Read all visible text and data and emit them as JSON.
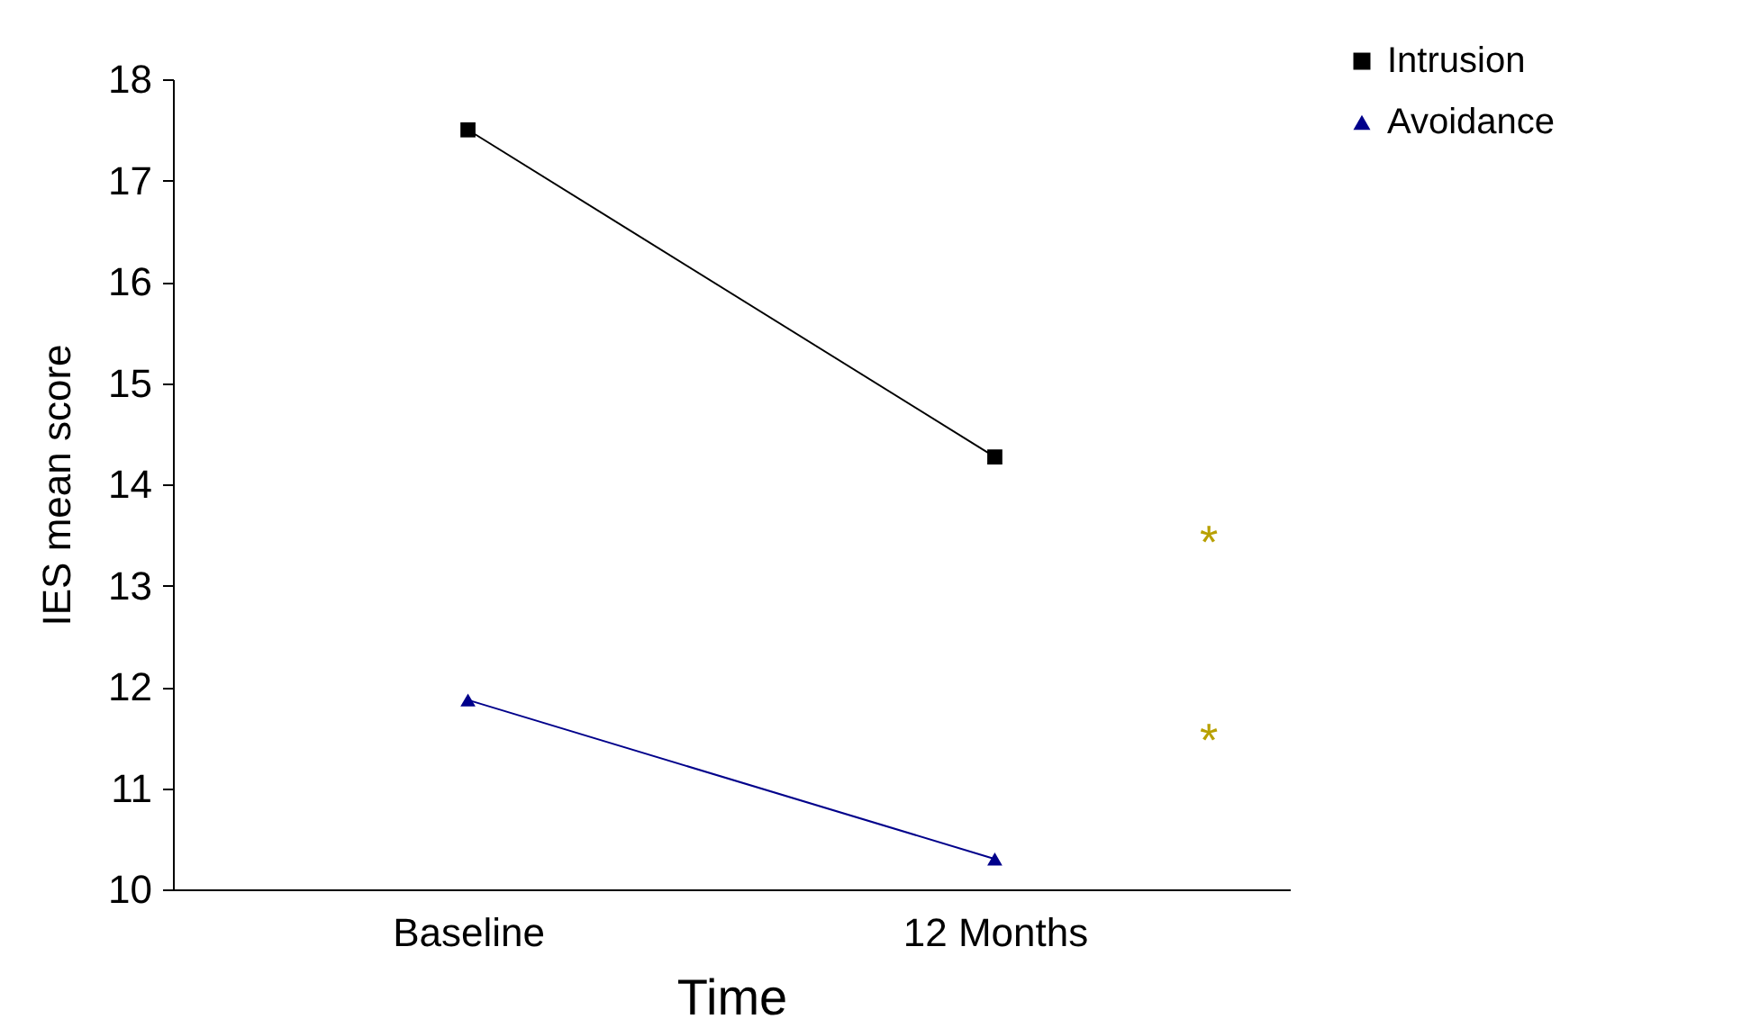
{
  "chart_data": {
    "type": "line",
    "xlabel": "Time",
    "ylabel": "IES mean score",
    "categories": [
      "Baseline",
      "12 Months"
    ],
    "series": [
      {
        "name": "Intrusion",
        "color": "#000000",
        "marker": "square",
        "values": [
          17.5,
          14.27
        ]
      },
      {
        "name": "Avoidance",
        "color": "#00008b",
        "marker": "triangle",
        "values": [
          11.87,
          10.3
        ]
      }
    ],
    "ylim": [
      10,
      18
    ],
    "yticks": [
      10,
      11,
      12,
      13,
      14,
      15,
      16,
      17,
      18
    ],
    "annotations": [
      "*",
      "*"
    ],
    "legend": "top right"
  }
}
